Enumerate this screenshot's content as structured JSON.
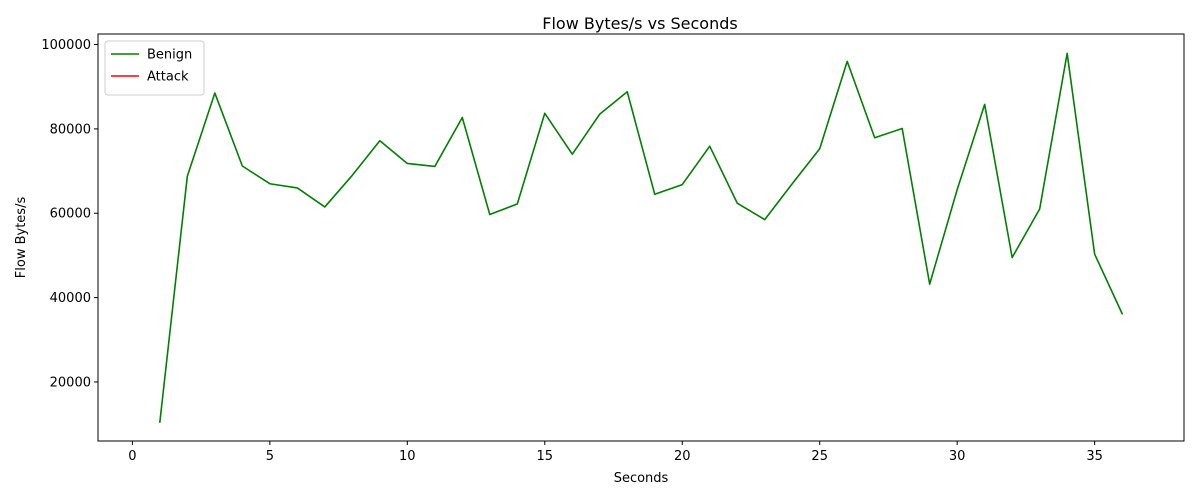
{
  "chart_data": {
    "type": "line",
    "title": "Flow Bytes/s vs Seconds",
    "xlabel": "Seconds",
    "ylabel": "Flow Bytes/s",
    "xlim": [
      -1.25,
      38.25
    ],
    "ylim": [
      6000,
      102500
    ],
    "xticks": [
      0,
      5,
      10,
      15,
      20,
      25,
      30,
      35
    ],
    "yticks": [
      20000,
      40000,
      60000,
      80000,
      100000
    ],
    "grid": false,
    "legend_position": "top-left",
    "series": [
      {
        "name": "Benign",
        "color": "#008000",
        "x": [
          1,
          2,
          3,
          4,
          5,
          6,
          7,
          8,
          9,
          10,
          11,
          12,
          13,
          14,
          15,
          16,
          17,
          18,
          19,
          20,
          21,
          22,
          23,
          24,
          25,
          26,
          27,
          28,
          29,
          30,
          31,
          32,
          33,
          34,
          35,
          36
        ],
        "y": [
          10500,
          68800,
          88500,
          71200,
          67000,
          66000,
          61500,
          69000,
          77200,
          71800,
          71100,
          82700,
          59700,
          62200,
          83700,
          74000,
          83500,
          88800,
          64500,
          66800,
          75900,
          62400,
          58500,
          67000,
          75300,
          96000,
          77900,
          80100,
          43200,
          65600,
          85800,
          49500,
          61000,
          97900,
          50300,
          36200
        ]
      },
      {
        "name": "Attack",
        "color": "#ff0000",
        "x": [],
        "y": []
      }
    ]
  }
}
